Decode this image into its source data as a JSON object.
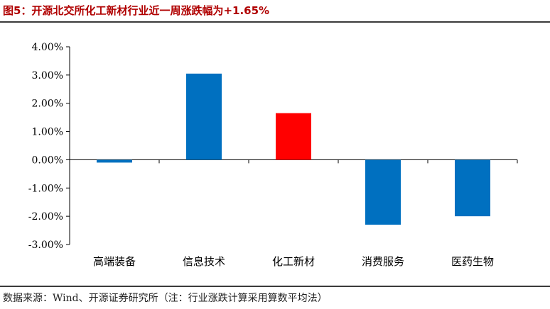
{
  "header": {
    "title": "图5：开源北交所化工新材行业近一周涨跌幅为+1.65%"
  },
  "footer": {
    "source": "数据来源：Wind、开源证券研究所（注：行业涨跌计算采用算数平均法）"
  },
  "chart_data": {
    "type": "bar",
    "categories": [
      "高端装备",
      "信息技术",
      "化工新材",
      "消费服务",
      "医药生物"
    ],
    "values": [
      -0.1,
      3.05,
      1.65,
      -2.3,
      -2.0
    ],
    "colors": [
      "#0070c0",
      "#0070c0",
      "#ff0000",
      "#0070c0",
      "#0070c0"
    ],
    "ylim": [
      -3.0,
      4.0
    ],
    "yticks": [
      "4.00%",
      "3.00%",
      "2.00%",
      "1.00%",
      "0.00%",
      "-1.00%",
      "-2.00%",
      "-3.00%"
    ],
    "ytick_values": [
      4,
      3,
      2,
      1,
      0,
      -1,
      -2,
      -3
    ],
    "grid": false,
    "legend": "none"
  }
}
